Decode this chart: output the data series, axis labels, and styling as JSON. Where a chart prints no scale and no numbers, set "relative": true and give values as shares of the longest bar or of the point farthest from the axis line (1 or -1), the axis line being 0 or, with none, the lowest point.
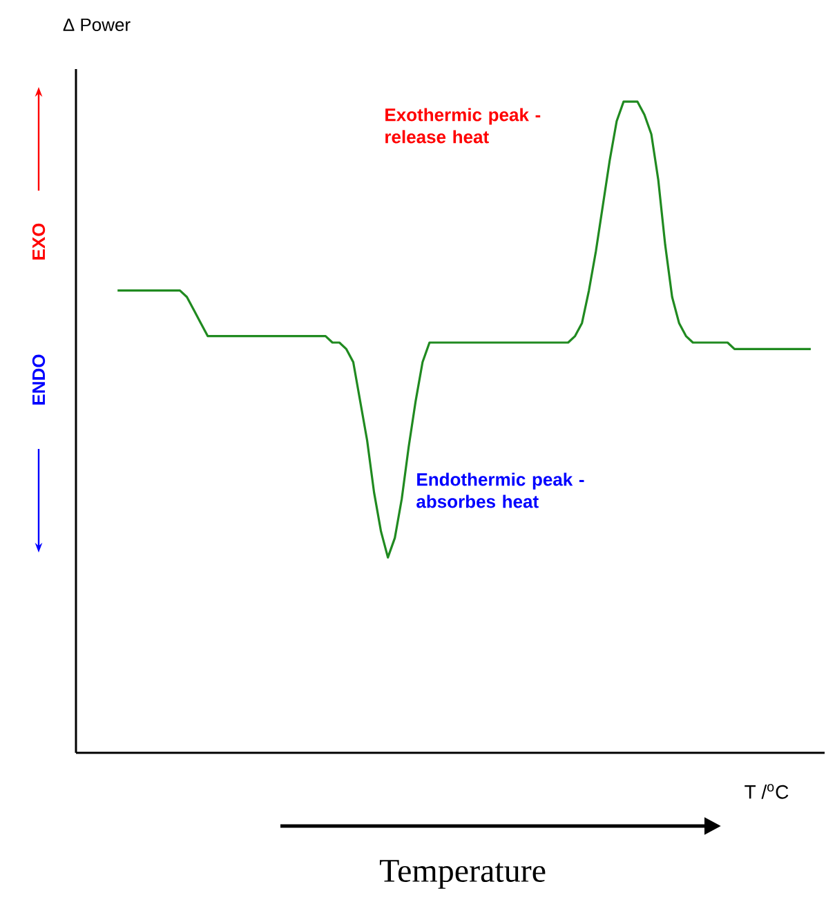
{
  "chart_data": {
    "type": "line",
    "relative": true,
    "ylabel": "Δ Power",
    "xlabel": "T /$^{o}$C",
    "annotations": [
      "Exothermic peak - release heat",
      "Endothermic peak - absorbes heat",
      "EXO",
      "ENDO",
      "Temperature"
    ],
    "categories": [
      null,
      null,
      null,
      null,
      null,
      null,
      null,
      null,
      null,
      null,
      null,
      null,
      null,
      null,
      null,
      null,
      null,
      null,
      null,
      null,
      null,
      null,
      null,
      null,
      null,
      null,
      null,
      null,
      null,
      null,
      null,
      null,
      null,
      null,
      null,
      null,
      null,
      null,
      null,
      null,
      null,
      null,
      null,
      null,
      null,
      null,
      null,
      null,
      null,
      null,
      null,
      null,
      null,
      null,
      null,
      null,
      null,
      null,
      null,
      null,
      null,
      null,
      null,
      null,
      null,
      null,
      null,
      null,
      null,
      null,
      null,
      null,
      null,
      null,
      null,
      null,
      null,
      null,
      null,
      null,
      null,
      null,
      null,
      null,
      null,
      null,
      null,
      null,
      null,
      null,
      null,
      null,
      null,
      null,
      null,
      null,
      null,
      null,
      null,
      null,
      null,
      null,
      null,
      null,
      null,
      null,
      null,
      null,
      null
    ],
    "series": [
      {
        "color": "#208a20",
        "values": [
          null,
          null,
          null,
          null,
          null,
          null,
          0.71,
          0.71,
          0.71,
          0.71,
          0.71,
          0.71,
          0.71,
          0.71,
          0.71,
          0.71,
          0.7,
          0.68,
          0.66,
          0.64,
          0.64,
          0.64,
          0.64,
          0.64,
          0.64,
          0.64,
          0.64,
          0.64,
          0.64,
          0.64,
          0.64,
          0.64,
          0.64,
          0.64,
          0.64,
          0.64,
          0.64,
          0.63,
          0.63,
          0.62,
          0.6,
          0.54,
          0.48,
          0.4,
          0.34,
          0.3,
          0.33,
          0.39,
          0.47,
          0.54,
          0.6,
          0.63,
          0.63,
          0.63,
          0.63,
          0.63,
          0.63,
          0.63,
          0.63,
          0.63,
          0.63,
          0.63,
          0.63,
          0.63,
          0.63,
          0.63,
          0.63,
          0.63,
          0.63,
          0.63,
          0.63,
          0.63,
          0.64,
          0.66,
          0.71,
          0.77,
          0.84,
          0.91,
          0.97,
          1.0,
          1.0,
          1.0,
          0.98,
          0.95,
          0.88,
          0.78,
          0.7,
          0.66,
          0.64,
          0.63,
          0.63,
          0.63,
          0.63,
          0.63,
          0.63,
          0.62,
          0.62,
          0.62,
          0.62,
          0.62,
          0.62,
          0.62,
          0.62,
          0.62,
          0.62,
          0.62,
          0.62,
          null,
          null
        ]
      }
    ]
  }
}
